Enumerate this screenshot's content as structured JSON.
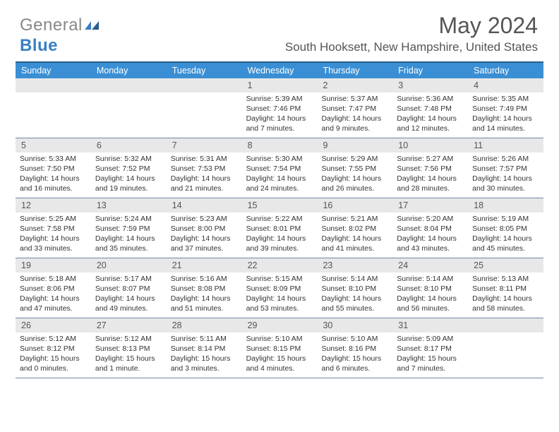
{
  "logo": {
    "gray_text": "General",
    "blue_text": "Blue"
  },
  "header": {
    "month_title": "May 2024",
    "location": "South Hooksett, New Hampshire, United States"
  },
  "weekdays": [
    "Sunday",
    "Monday",
    "Tuesday",
    "Wednesday",
    "Thursday",
    "Friday",
    "Saturday"
  ],
  "colors": {
    "header_bar": "#3a8fd4",
    "border_top": "#2b5d8a",
    "row_border": "#6a8aa8",
    "daynum_bg": "#e8e8e8",
    "logo_blue": "#3a7fc2",
    "text_gray": "#555555"
  },
  "weeks": [
    [
      {
        "n": "",
        "sr": "",
        "ss": "",
        "dh": "",
        "dm": ""
      },
      {
        "n": "",
        "sr": "",
        "ss": "",
        "dh": "",
        "dm": ""
      },
      {
        "n": "",
        "sr": "",
        "ss": "",
        "dh": "",
        "dm": ""
      },
      {
        "n": "1",
        "sr": "5:39 AM",
        "ss": "7:46 PM",
        "dh": "14",
        "dm": "7"
      },
      {
        "n": "2",
        "sr": "5:37 AM",
        "ss": "7:47 PM",
        "dh": "14",
        "dm": "9"
      },
      {
        "n": "3",
        "sr": "5:36 AM",
        "ss": "7:48 PM",
        "dh": "14",
        "dm": "12"
      },
      {
        "n": "4",
        "sr": "5:35 AM",
        "ss": "7:49 PM",
        "dh": "14",
        "dm": "14"
      }
    ],
    [
      {
        "n": "5",
        "sr": "5:33 AM",
        "ss": "7:50 PM",
        "dh": "14",
        "dm": "16"
      },
      {
        "n": "6",
        "sr": "5:32 AM",
        "ss": "7:52 PM",
        "dh": "14",
        "dm": "19"
      },
      {
        "n": "7",
        "sr": "5:31 AM",
        "ss": "7:53 PM",
        "dh": "14",
        "dm": "21"
      },
      {
        "n": "8",
        "sr": "5:30 AM",
        "ss": "7:54 PM",
        "dh": "14",
        "dm": "24"
      },
      {
        "n": "9",
        "sr": "5:29 AM",
        "ss": "7:55 PM",
        "dh": "14",
        "dm": "26"
      },
      {
        "n": "10",
        "sr": "5:27 AM",
        "ss": "7:56 PM",
        "dh": "14",
        "dm": "28"
      },
      {
        "n": "11",
        "sr": "5:26 AM",
        "ss": "7:57 PM",
        "dh": "14",
        "dm": "30"
      }
    ],
    [
      {
        "n": "12",
        "sr": "5:25 AM",
        "ss": "7:58 PM",
        "dh": "14",
        "dm": "33"
      },
      {
        "n": "13",
        "sr": "5:24 AM",
        "ss": "7:59 PM",
        "dh": "14",
        "dm": "35"
      },
      {
        "n": "14",
        "sr": "5:23 AM",
        "ss": "8:00 PM",
        "dh": "14",
        "dm": "37"
      },
      {
        "n": "15",
        "sr": "5:22 AM",
        "ss": "8:01 PM",
        "dh": "14",
        "dm": "39"
      },
      {
        "n": "16",
        "sr": "5:21 AM",
        "ss": "8:02 PM",
        "dh": "14",
        "dm": "41"
      },
      {
        "n": "17",
        "sr": "5:20 AM",
        "ss": "8:04 PM",
        "dh": "14",
        "dm": "43"
      },
      {
        "n": "18",
        "sr": "5:19 AM",
        "ss": "8:05 PM",
        "dh": "14",
        "dm": "45"
      }
    ],
    [
      {
        "n": "19",
        "sr": "5:18 AM",
        "ss": "8:06 PM",
        "dh": "14",
        "dm": "47"
      },
      {
        "n": "20",
        "sr": "5:17 AM",
        "ss": "8:07 PM",
        "dh": "14",
        "dm": "49"
      },
      {
        "n": "21",
        "sr": "5:16 AM",
        "ss": "8:08 PM",
        "dh": "14",
        "dm": "51"
      },
      {
        "n": "22",
        "sr": "5:15 AM",
        "ss": "8:09 PM",
        "dh": "14",
        "dm": "53"
      },
      {
        "n": "23",
        "sr": "5:14 AM",
        "ss": "8:10 PM",
        "dh": "14",
        "dm": "55"
      },
      {
        "n": "24",
        "sr": "5:14 AM",
        "ss": "8:10 PM",
        "dh": "14",
        "dm": "56"
      },
      {
        "n": "25",
        "sr": "5:13 AM",
        "ss": "8:11 PM",
        "dh": "14",
        "dm": "58"
      }
    ],
    [
      {
        "n": "26",
        "sr": "5:12 AM",
        "ss": "8:12 PM",
        "dh": "15",
        "dm": "0"
      },
      {
        "n": "27",
        "sr": "5:12 AM",
        "ss": "8:13 PM",
        "dh": "15",
        "dm": "1"
      },
      {
        "n": "28",
        "sr": "5:11 AM",
        "ss": "8:14 PM",
        "dh": "15",
        "dm": "3"
      },
      {
        "n": "29",
        "sr": "5:10 AM",
        "ss": "8:15 PM",
        "dh": "15",
        "dm": "4"
      },
      {
        "n": "30",
        "sr": "5:10 AM",
        "ss": "8:16 PM",
        "dh": "15",
        "dm": "6"
      },
      {
        "n": "31",
        "sr": "5:09 AM",
        "ss": "8:17 PM",
        "dh": "15",
        "dm": "7"
      },
      {
        "n": "",
        "sr": "",
        "ss": "",
        "dh": "",
        "dm": ""
      }
    ]
  ],
  "labels": {
    "sunrise": "Sunrise:",
    "sunset": "Sunset:",
    "daylight_pre": "Daylight:",
    "hours_word": "hours",
    "and_word": "and",
    "minute_word": "minute.",
    "minutes_word": "minutes."
  }
}
